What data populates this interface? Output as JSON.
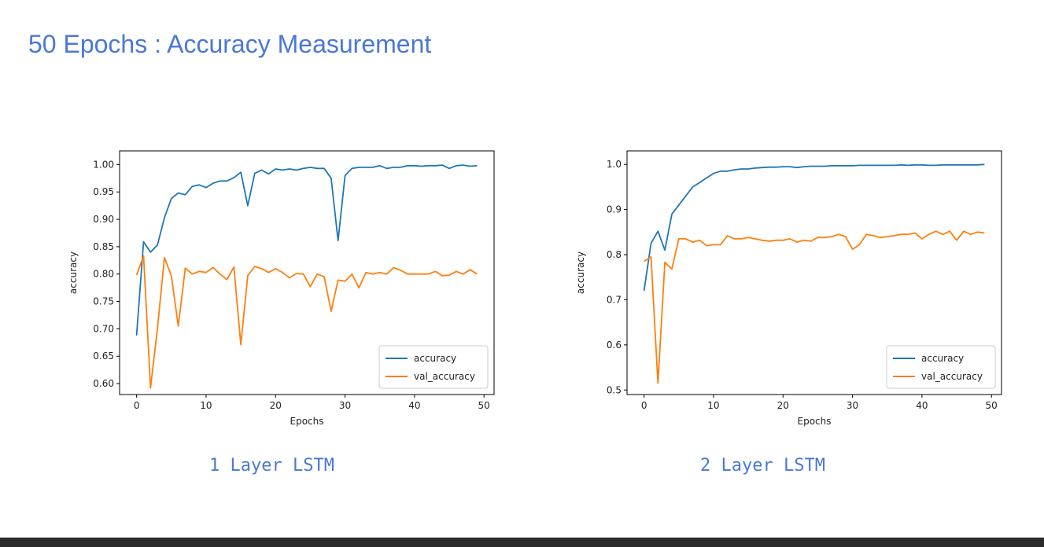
{
  "slide": {
    "title": "50 Epochs : Accuracy Measurement"
  },
  "captions": [
    "1 Layer LSTM",
    "2 Layer LSTM"
  ],
  "colors": {
    "title": "#4a78d6",
    "accuracy": "#1f77b4",
    "val_accuracy": "#ff7f0e"
  },
  "chart_data": [
    {
      "type": "line",
      "xlabel": "Epochs",
      "ylabel": "accuracy",
      "xlim": [
        -2.45,
        51.45
      ],
      "ylim": [
        0.58,
        1.025
      ],
      "xticks": [
        0,
        10,
        20,
        30,
        40,
        50
      ],
      "xtick_labels": [
        "0",
        "10",
        "20",
        "30",
        "40",
        "50"
      ],
      "yticks": [
        0.6,
        0.65,
        0.7,
        0.75,
        0.8,
        0.85,
        0.9,
        0.95,
        1.0
      ],
      "ytick_labels": [
        "0.60",
        "0.65",
        "0.70",
        "0.75",
        "0.80",
        "0.85",
        "0.90",
        "0.95",
        "1.00"
      ],
      "legend": "lower-right",
      "grid": false,
      "x": [
        0,
        1,
        2,
        3,
        4,
        5,
        6,
        7,
        8,
        9,
        10,
        11,
        12,
        13,
        14,
        15,
        16,
        17,
        18,
        19,
        20,
        21,
        22,
        23,
        24,
        25,
        26,
        27,
        28,
        29,
        30,
        31,
        32,
        33,
        34,
        35,
        36,
        37,
        38,
        39,
        40,
        41,
        42,
        43,
        44,
        45,
        46,
        47,
        48,
        49
      ],
      "series": [
        {
          "name": "accuracy",
          "values": [
            0.688,
            0.859,
            0.84,
            0.853,
            0.903,
            0.938,
            0.948,
            0.945,
            0.96,
            0.963,
            0.958,
            0.966,
            0.97,
            0.97,
            0.976,
            0.986,
            0.925,
            0.984,
            0.99,
            0.983,
            0.992,
            0.99,
            0.992,
            0.99,
            0.993,
            0.995,
            0.993,
            0.993,
            0.975,
            0.861,
            0.98,
            0.993,
            0.995,
            0.995,
            0.995,
            0.998,
            0.993,
            0.995,
            0.995,
            0.998,
            0.998,
            0.997,
            0.998,
            0.998,
            0.999,
            0.993,
            0.998,
            0.999,
            0.997,
            0.998
          ]
        },
        {
          "name": "val_accuracy",
          "values": [
            0.798,
            0.833,
            0.592,
            0.7,
            0.83,
            0.797,
            0.705,
            0.811,
            0.8,
            0.805,
            0.803,
            0.812,
            0.8,
            0.79,
            0.813,
            0.671,
            0.797,
            0.814,
            0.81,
            0.803,
            0.81,
            0.803,
            0.793,
            0.801,
            0.8,
            0.777,
            0.8,
            0.795,
            0.732,
            0.789,
            0.787,
            0.8,
            0.775,
            0.803,
            0.8,
            0.803,
            0.8,
            0.812,
            0.807,
            0.8,
            0.8,
            0.8,
            0.8,
            0.805,
            0.797,
            0.798,
            0.805,
            0.8,
            0.808,
            0.8
          ]
        }
      ]
    },
    {
      "type": "line",
      "xlabel": "Epochs",
      "ylabel": "accuracy",
      "xlim": [
        -2.45,
        51.45
      ],
      "ylim": [
        0.49,
        1.03
      ],
      "xticks": [
        0,
        10,
        20,
        30,
        40,
        50
      ],
      "xtick_labels": [
        "0",
        "10",
        "20",
        "30",
        "40",
        "50"
      ],
      "yticks": [
        0.5,
        0.6,
        0.7,
        0.8,
        0.9,
        1.0
      ],
      "ytick_labels": [
        "0.5",
        "0.6",
        "0.7",
        "0.8",
        "0.9",
        "1.0"
      ],
      "legend": "lower-right",
      "grid": false,
      "x": [
        0,
        1,
        2,
        3,
        4,
        5,
        6,
        7,
        8,
        9,
        10,
        11,
        12,
        13,
        14,
        15,
        16,
        17,
        18,
        19,
        20,
        21,
        22,
        23,
        24,
        25,
        26,
        27,
        28,
        29,
        30,
        31,
        32,
        33,
        34,
        35,
        36,
        37,
        38,
        39,
        40,
        41,
        42,
        43,
        44,
        45,
        46,
        47,
        48,
        49
      ],
      "series": [
        {
          "name": "accuracy",
          "values": [
            0.72,
            0.825,
            0.852,
            0.81,
            0.89,
            0.91,
            0.93,
            0.95,
            0.96,
            0.97,
            0.98,
            0.985,
            0.985,
            0.988,
            0.99,
            0.99,
            0.992,
            0.993,
            0.994,
            0.994,
            0.995,
            0.995,
            0.993,
            0.995,
            0.996,
            0.996,
            0.996,
            0.997,
            0.997,
            0.997,
            0.997,
            0.998,
            0.998,
            0.998,
            0.998,
            0.998,
            0.998,
            0.999,
            0.998,
            0.999,
            0.999,
            0.998,
            0.998,
            0.999,
            0.999,
            0.999,
            0.999,
            0.999,
            0.999,
            1.0
          ]
        },
        {
          "name": "val_accuracy",
          "values": [
            0.785,
            0.795,
            0.515,
            0.783,
            0.768,
            0.835,
            0.835,
            0.828,
            0.832,
            0.82,
            0.822,
            0.822,
            0.842,
            0.835,
            0.835,
            0.838,
            0.835,
            0.832,
            0.83,
            0.832,
            0.832,
            0.835,
            0.828,
            0.832,
            0.83,
            0.838,
            0.838,
            0.84,
            0.845,
            0.84,
            0.812,
            0.822,
            0.845,
            0.842,
            0.838,
            0.84,
            0.842,
            0.845,
            0.845,
            0.848,
            0.835,
            0.845,
            0.852,
            0.845,
            0.852,
            0.832,
            0.852,
            0.845,
            0.85,
            0.848
          ]
        }
      ]
    }
  ]
}
